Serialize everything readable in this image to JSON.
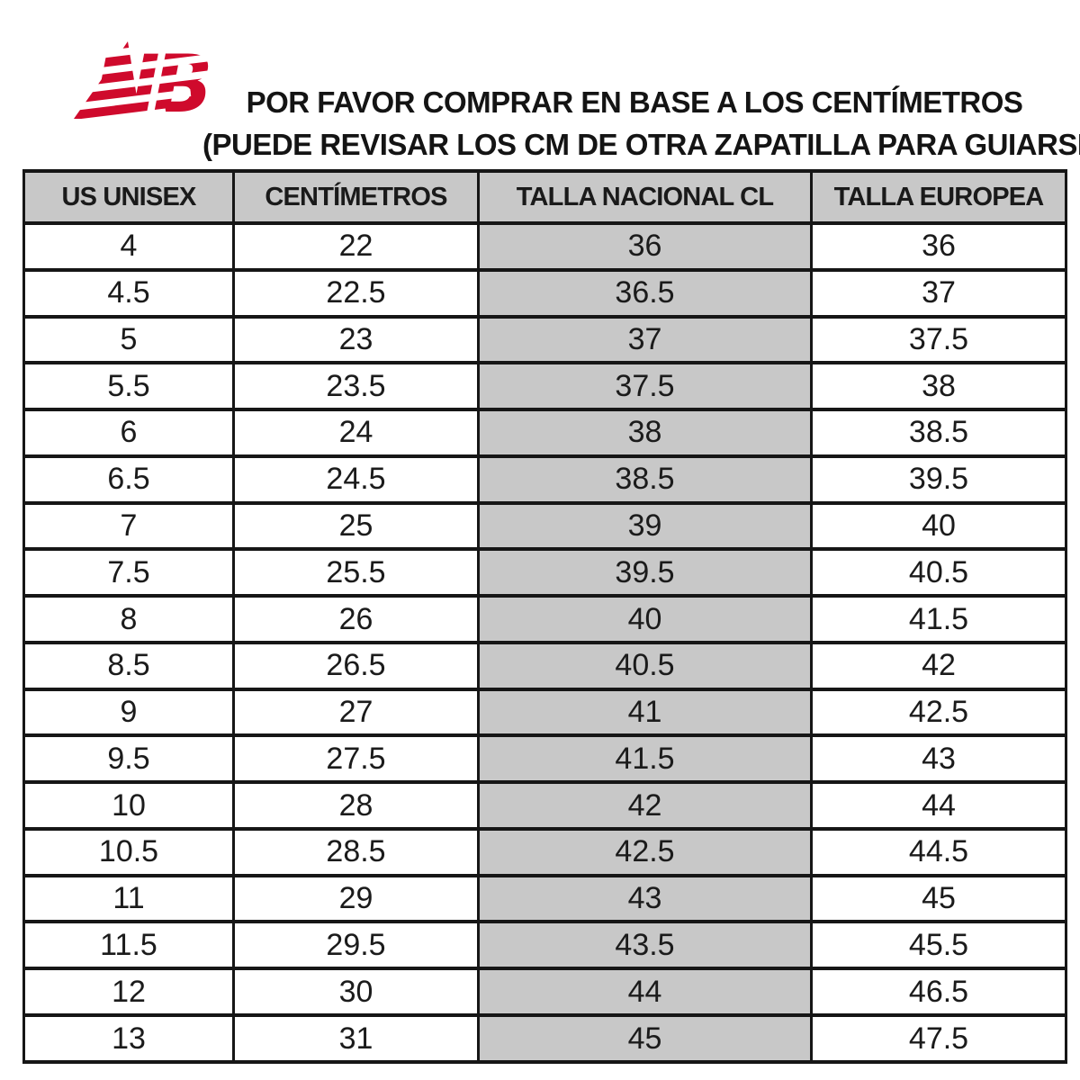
{
  "logo": {
    "brand": "New Balance",
    "letters": "NB",
    "color": "#cf0a2c"
  },
  "title": {
    "line1": "POR FAVOR COMPRAR EN BASE A LOS CENTÍMETROS",
    "line2": "(PUEDE REVISAR LOS CM DE OTRA ZAPATILLA PARA GUIARSE)"
  },
  "table": {
    "headers": [
      "US UNISEX",
      "CENTÍMETROS",
      "TALLA NACIONAL CL",
      "TALLA EUROPEA"
    ],
    "highlight_column": 2,
    "header_bg": "#c8c8c8",
    "highlight_bg": "#c8c8c8",
    "border_color": "#161616",
    "rows": [
      [
        "4",
        "22",
        "36",
        "36"
      ],
      [
        "4.5",
        "22.5",
        "36.5",
        "37"
      ],
      [
        "5",
        "23",
        "37",
        "37.5"
      ],
      [
        "5.5",
        "23.5",
        "37.5",
        "38"
      ],
      [
        "6",
        "24",
        "38",
        "38.5"
      ],
      [
        "6.5",
        "24.5",
        "38.5",
        "39.5"
      ],
      [
        "7",
        "25",
        "39",
        "40"
      ],
      [
        "7.5",
        "25.5",
        "39.5",
        "40.5"
      ],
      [
        "8",
        "26",
        "40",
        "41.5"
      ],
      [
        "8.5",
        "26.5",
        "40.5",
        "42"
      ],
      [
        "9",
        "27",
        "41",
        "42.5"
      ],
      [
        "9.5",
        "27.5",
        "41.5",
        "43"
      ],
      [
        "10",
        "28",
        "42",
        "44"
      ],
      [
        "10.5",
        "28.5",
        "42.5",
        "44.5"
      ],
      [
        "11",
        "29",
        "43",
        "45"
      ],
      [
        "11.5",
        "29.5",
        "43.5",
        "45.5"
      ],
      [
        "12",
        "30",
        "44",
        "46.5"
      ],
      [
        "13",
        "31",
        "45",
        "47.5"
      ]
    ]
  }
}
